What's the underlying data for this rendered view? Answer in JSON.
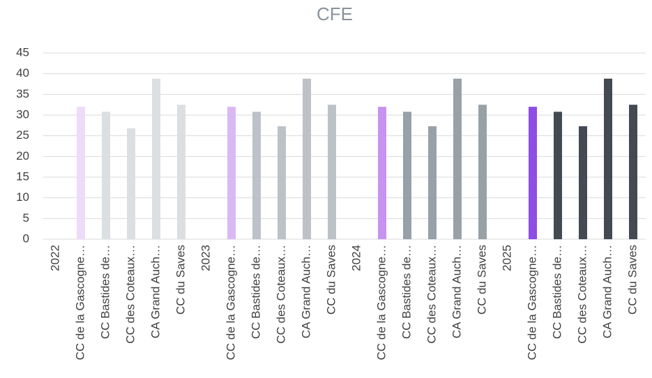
{
  "chart_data": {
    "type": "bar",
    "title": "CFE",
    "categories": [
      "2022",
      "CC de la Gascogne…",
      "CC Bastides de…",
      "CC des Coteaux…",
      "CA Grand Auch…",
      "CC du Saves",
      "2023",
      "CC de la Gascogne…",
      "CC Bastides de…",
      "CC des Coteaux…",
      "CA Grand Auch…",
      "CC du Saves",
      "2024",
      "CC de la Gascogne…",
      "CC Bastides de…",
      "CC des Coteaux…",
      "CA Grand Auch…",
      "CC du Saves",
      "2025",
      "CC de la Gascogne…",
      "CC Bastides de…",
      "CC des Coteaux…",
      "CA Grand Auch…",
      "CC du Saves"
    ],
    "values": [
      null,
      32,
      30.8,
      26.8,
      38.8,
      32.5,
      null,
      32,
      30.8,
      27.3,
      38.8,
      32.5,
      null,
      32,
      30.8,
      27.3,
      38.8,
      32.5,
      null,
      32,
      30.8,
      27.3,
      38.8,
      32.5
    ],
    "colors": [
      null,
      "#eddcf9",
      "#dcdfe2",
      "#dcdfe2",
      "#dcdfe2",
      "#dcdfe2",
      null,
      "#dab8f4",
      "#bcc2c7",
      "#bcc2c7",
      "#bcc2c7",
      "#bcc2c7",
      null,
      "#c893f0",
      "#98a1a8",
      "#98a1a8",
      "#98a1a8",
      "#98a1a8",
      null,
      "#8e4de6",
      "#434a52",
      "#434a52",
      "#434a52",
      "#434a52"
    ],
    "ylim": [
      0,
      45
    ],
    "yticks": [
      0,
      5,
      10,
      15,
      20,
      25,
      30,
      35,
      40,
      45
    ],
    "grid": true
  }
}
